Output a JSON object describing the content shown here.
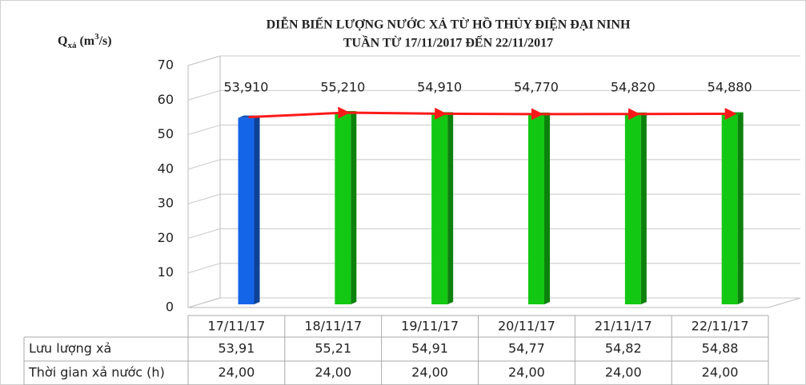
{
  "chart_data": {
    "type": "bar",
    "title": "DIỄN BIẾN LƯỢNG NƯỚC XẢ TỪ HỒ THỦY ĐIỆN ĐẠI NINH",
    "subtitle": "TUẦN TỪ 17/11/2017 ĐẾN 22/11/2017",
    "y_label_parts": [
      "Q",
      "xả",
      " (m",
      "3",
      "/s)"
    ],
    "categories": [
      "17/11/17",
      "18/11/17",
      "19/11/17",
      "20/11/17",
      "21/11/17",
      "22/11/17"
    ],
    "series": [
      {
        "name": "Lưu lượng xả",
        "values": [
          53.91,
          55.21,
          54.91,
          54.77,
          54.82,
          54.88
        ],
        "value_labels": [
          "53,910",
          "55,210",
          "54,910",
          "54,770",
          "54,820",
          "54,880"
        ],
        "colors": [
          "#1565e8",
          "#12c812",
          "#12c812",
          "#12c812",
          "#12c812",
          "#12c812"
        ],
        "line_color": "#ff1a1a"
      }
    ],
    "ylim": [
      0,
      70
    ],
    "yticks": [
      0,
      10,
      20,
      30,
      40,
      50,
      60,
      70
    ],
    "grid": true,
    "data_table": {
      "rows": [
        {
          "name": "Lưu lượng xả",
          "labels": [
            "53,91",
            "55,21",
            "54,91",
            "54,77",
            "54,82",
            "54,88"
          ]
        },
        {
          "name": "Thời gian xả nước (h)",
          "labels": [
            "24,00",
            "24,00",
            "24,00",
            "24,00",
            "24,00",
            "24,00"
          ]
        }
      ]
    }
  }
}
